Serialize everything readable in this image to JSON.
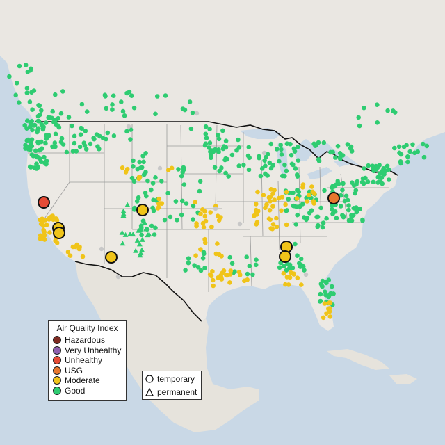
{
  "legend": {
    "title": "Air Quality Index",
    "items": [
      {
        "label": "Hazardous",
        "color": "#7e2b22"
      },
      {
        "label": "Very Unhealthy",
        "color": "#8e5fae"
      },
      {
        "label": "Unhealthy",
        "color": "#e64b35"
      },
      {
        "label": "USG",
        "color": "#e8772e"
      },
      {
        "label": "Moderate",
        "color": "#f0c419"
      },
      {
        "label": "Good",
        "color": "#2ecc71"
      }
    ]
  },
  "monitor_type_legend": {
    "temporary_label": "temporary",
    "permanent_label": "permanent"
  },
  "colors": {
    "land": "#ece9e4",
    "water": "#c9d8e6",
    "good": "#2ecc71",
    "moderate": "#f0c419",
    "unhealthy": "#e64b35",
    "usg": "#e8772e",
    "no_data": "#c8c8c8",
    "border": "#111111",
    "state_lines": "#9a9a9a"
  },
  "highlighted_monitors": [
    {
      "category": "Unhealthy",
      "type": "temporary",
      "location": "Northern California"
    },
    {
      "category": "USG",
      "type": "temporary",
      "location": "Pennsylvania"
    },
    {
      "category": "Moderate",
      "type": "temporary",
      "location": "Central California"
    },
    {
      "category": "Moderate",
      "type": "temporary",
      "location": "Central California"
    },
    {
      "category": "Moderate",
      "type": "temporary",
      "location": "Colorado"
    },
    {
      "category": "Moderate",
      "type": "temporary",
      "location": "Arizona"
    },
    {
      "category": "Moderate",
      "type": "temporary",
      "location": "Alabama"
    },
    {
      "category": "Moderate",
      "type": "temporary",
      "location": "Alabama"
    }
  ]
}
